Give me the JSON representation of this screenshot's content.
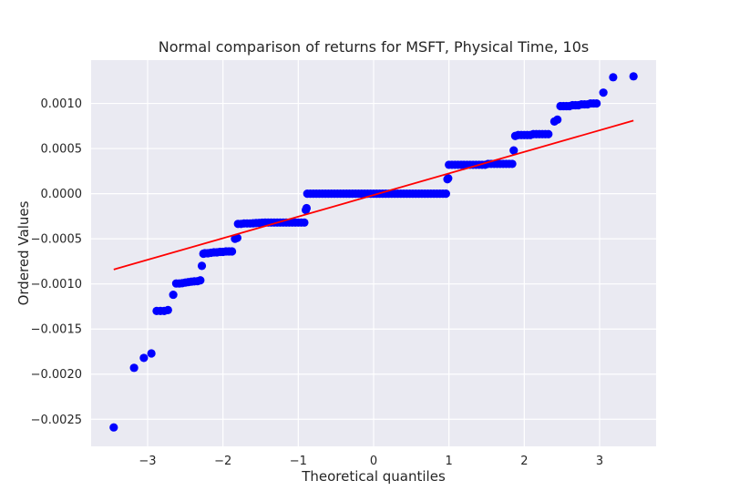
{
  "chart_data": {
    "type": "scatter",
    "title": "Normal comparison of returns for MSFT, Physical Time, 10s",
    "xlabel": "Theoretical quantiles",
    "ylabel": "Ordered Values",
    "xlim": [
      -3.75,
      3.75
    ],
    "ylim": [
      -0.0028,
      0.00148
    ],
    "grid": true,
    "x_ticks": [
      -3,
      -2,
      -1,
      0,
      1,
      2,
      3
    ],
    "x_tick_labels": [
      "−3",
      "−2",
      "−1",
      "0",
      "1",
      "2",
      "3"
    ],
    "y_ticks": [
      -0.0025,
      -0.002,
      -0.0015,
      -0.001,
      -0.0005,
      0.0,
      0.0005,
      0.001
    ],
    "y_tick_labels": [
      "−0.0025",
      "−0.0020",
      "−0.0015",
      "−0.0010",
      "−0.0005",
      "0.0000",
      "0.0005",
      "0.0010"
    ],
    "colors": {
      "points": "#0000ff",
      "fit_line": "#ff0000",
      "plot_background": "#eaeaf2",
      "grid": "#ffffff"
    },
    "fit_line": {
      "x": [
        -3.45,
        3.45
      ],
      "y": [
        -0.00084,
        0.00081
      ]
    },
    "points": [
      [
        -3.45,
        -0.00259
      ],
      [
        -3.18,
        -0.00193
      ],
      [
        -3.05,
        -0.00182
      ],
      [
        -2.95,
        -0.00177
      ],
      [
        -2.88,
        -0.0013
      ],
      [
        -2.83,
        -0.0013
      ],
      [
        -2.78,
        -0.0013
      ],
      [
        -2.73,
        -0.00129
      ],
      [
        -2.66,
        -0.00112
      ],
      [
        -2.62,
        -0.000995
      ],
      [
        -2.58,
        -0.000995
      ],
      [
        -2.54,
        -0.000992
      ],
      [
        -2.5,
        -0.000985
      ],
      [
        -2.46,
        -0.00098
      ],
      [
        -2.42,
        -0.000975
      ],
      [
        -2.38,
        -0.000972
      ],
      [
        -2.34,
        -0.00097
      ],
      [
        -2.3,
        -0.00096
      ],
      [
        -2.28,
        -0.0008
      ],
      [
        -2.26,
        -0.000665
      ],
      [
        -2.24,
        -0.00066
      ],
      [
        -2.2,
        -0.00066
      ],
      [
        -2.16,
        -0.000655
      ],
      [
        -2.12,
        -0.00065
      ],
      [
        -2.08,
        -0.00065
      ],
      [
        -2.04,
        -0.000645
      ],
      [
        -2.0,
        -0.000645
      ],
      [
        -1.96,
        -0.00064
      ],
      [
        -1.92,
        -0.00064
      ],
      [
        -1.88,
        -0.00064
      ],
      [
        -1.84,
        -0.0005
      ],
      [
        -1.81,
        -0.00049
      ],
      [
        -1.8,
        -0.000335
      ],
      [
        -1.76,
        -0.000335
      ],
      [
        -1.72,
        -0.00033
      ],
      [
        -1.68,
        -0.00033
      ],
      [
        -1.64,
        -0.00033
      ],
      [
        -1.6,
        -0.000328
      ],
      [
        -1.56,
        -0.000326
      ],
      [
        -1.52,
        -0.000324
      ],
      [
        -1.48,
        -0.000322
      ],
      [
        -1.44,
        -0.00032
      ],
      [
        -1.4,
        -0.00032
      ],
      [
        -1.36,
        -0.00032
      ],
      [
        -1.32,
        -0.00032
      ],
      [
        -1.28,
        -0.00032
      ],
      [
        -1.24,
        -0.00032
      ],
      [
        -1.2,
        -0.00032
      ],
      [
        -1.16,
        -0.00032
      ],
      [
        -1.12,
        -0.00032
      ],
      [
        -1.08,
        -0.00032
      ],
      [
        -1.04,
        -0.00032
      ],
      [
        -1.0,
        -0.00032
      ],
      [
        -0.96,
        -0.00032
      ],
      [
        -0.92,
        -0.00032
      ],
      [
        -0.9,
        -0.00018
      ],
      [
        -0.89,
        -0.00016
      ],
      [
        -0.88,
        0.0
      ],
      [
        -0.84,
        0.0
      ],
      [
        -0.8,
        0.0
      ],
      [
        -0.76,
        0.0
      ],
      [
        -0.72,
        0.0
      ],
      [
        -0.68,
        0.0
      ],
      [
        -0.64,
        0.0
      ],
      [
        -0.6,
        0.0
      ],
      [
        -0.56,
        0.0
      ],
      [
        -0.52,
        0.0
      ],
      [
        -0.48,
        0.0
      ],
      [
        -0.44,
        0.0
      ],
      [
        -0.4,
        0.0
      ],
      [
        -0.36,
        0.0
      ],
      [
        -0.32,
        0.0
      ],
      [
        -0.28,
        0.0
      ],
      [
        -0.24,
        0.0
      ],
      [
        -0.2,
        0.0
      ],
      [
        -0.16,
        0.0
      ],
      [
        -0.12,
        0.0
      ],
      [
        -0.08,
        0.0
      ],
      [
        -0.04,
        0.0
      ],
      [
        0.0,
        0.0
      ],
      [
        0.04,
        0.0
      ],
      [
        0.08,
        0.0
      ],
      [
        0.12,
        0.0
      ],
      [
        0.16,
        0.0
      ],
      [
        0.2,
        0.0
      ],
      [
        0.24,
        0.0
      ],
      [
        0.28,
        0.0
      ],
      [
        0.32,
        0.0
      ],
      [
        0.36,
        0.0
      ],
      [
        0.4,
        0.0
      ],
      [
        0.44,
        0.0
      ],
      [
        0.48,
        0.0
      ],
      [
        0.52,
        0.0
      ],
      [
        0.56,
        0.0
      ],
      [
        0.6,
        0.0
      ],
      [
        0.64,
        0.0
      ],
      [
        0.68,
        0.0
      ],
      [
        0.72,
        0.0
      ],
      [
        0.76,
        0.0
      ],
      [
        0.8,
        0.0
      ],
      [
        0.84,
        0.0
      ],
      [
        0.88,
        0.0
      ],
      [
        0.92,
        0.0
      ],
      [
        0.96,
        0.0
      ],
      [
        0.98,
        0.00016
      ],
      [
        0.99,
        0.00017
      ],
      [
        1.0,
        0.00032
      ],
      [
        1.04,
        0.00032
      ],
      [
        1.08,
        0.00032
      ],
      [
        1.12,
        0.00032
      ],
      [
        1.16,
        0.00032
      ],
      [
        1.2,
        0.00032
      ],
      [
        1.24,
        0.00032
      ],
      [
        1.28,
        0.00032
      ],
      [
        1.32,
        0.00032
      ],
      [
        1.36,
        0.00032
      ],
      [
        1.4,
        0.00032
      ],
      [
        1.44,
        0.00032
      ],
      [
        1.48,
        0.00032
      ],
      [
        1.52,
        0.00033
      ],
      [
        1.56,
        0.00033
      ],
      [
        1.6,
        0.00033
      ],
      [
        1.64,
        0.00033
      ],
      [
        1.68,
        0.00033
      ],
      [
        1.72,
        0.00033
      ],
      [
        1.76,
        0.00033
      ],
      [
        1.8,
        0.00033
      ],
      [
        1.84,
        0.00033
      ],
      [
        1.86,
        0.00048
      ],
      [
        1.88,
        0.00064
      ],
      [
        1.92,
        0.00065
      ],
      [
        1.96,
        0.00065
      ],
      [
        2.0,
        0.00065
      ],
      [
        2.04,
        0.00065
      ],
      [
        2.08,
        0.00065
      ],
      [
        2.12,
        0.00066
      ],
      [
        2.16,
        0.00066
      ],
      [
        2.2,
        0.00066
      ],
      [
        2.24,
        0.00066
      ],
      [
        2.28,
        0.00066
      ],
      [
        2.32,
        0.00066
      ],
      [
        2.4,
        0.0008
      ],
      [
        2.44,
        0.00082
      ],
      [
        2.48,
        0.00097
      ],
      [
        2.52,
        0.00097
      ],
      [
        2.56,
        0.00097
      ],
      [
        2.6,
        0.00097
      ],
      [
        2.64,
        0.00098
      ],
      [
        2.68,
        0.00098
      ],
      [
        2.72,
        0.00098
      ],
      [
        2.76,
        0.00099
      ],
      [
        2.8,
        0.00099
      ],
      [
        2.84,
        0.00099
      ],
      [
        2.88,
        0.001
      ],
      [
        2.92,
        0.001
      ],
      [
        2.96,
        0.001
      ],
      [
        3.05,
        0.00112
      ],
      [
        3.18,
        0.00129
      ],
      [
        3.45,
        0.0013
      ]
    ]
  }
}
